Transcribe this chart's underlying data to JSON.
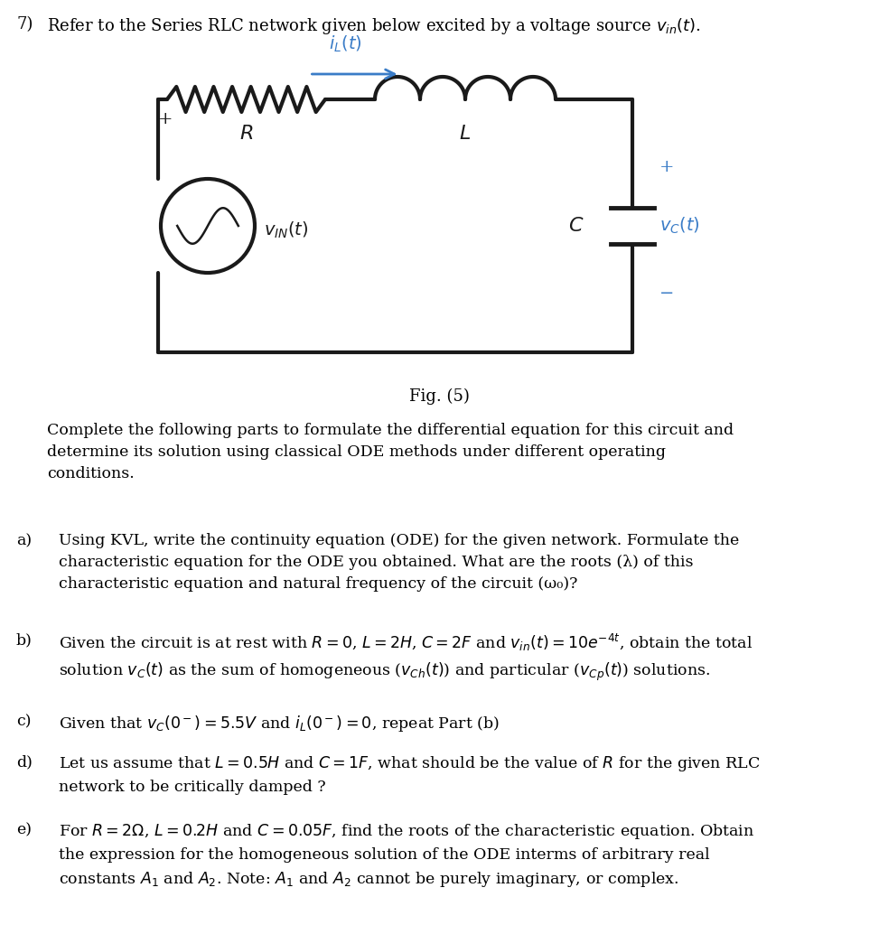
{
  "wire_color": "#1a1a1a",
  "blue_color": "#3a7cc7",
  "title": "7)  Refer to the Series RLC network given below excited by a voltage source $v_{in}(t)$.",
  "fig_label": "Fig. (5)",
  "intro": "Complete the following parts to formulate the differential equation for this circuit and\ndetermine its solution using classical ODE methods under different operating\nconditions.",
  "items": [
    {
      "label": "a)",
      "text": "Using KVL, write the continuity equation (ODE) for the given network. Formulate the\ncharacteristic equation for the ODE you obtained. What are the roots (λ) of this\ncharacteristic equation and natural frequency of the circuit (ω₀)?"
    },
    {
      "label": "b)",
      "text": "Given the circuit is at rest with R = 0, L = 2H, C = 2F and $v_{in}(t) = 10e^{-4t}$, obtain the total\nsolution $v_C(t)$ as the sum of homogeneous ($v_{Ch}(t)$) and particular ($v_{Cp}(t)$) solutions."
    },
    {
      "label": "c)",
      "text": "Given that $v_C(0^-) = 5.5V$ and $i_L(0^-) = 0$, repeat Part (b)"
    },
    {
      "label": "d)",
      "text": "Let us assume that L = 0.5H and C = 1F, what should be the value of R for the given RLC\nnetwork to be critically damped ?"
    },
    {
      "label": "e)",
      "text": "For R = 2Ω, L = 0.2H and C = 0.05F, find the roots of the characteristic equation. Obtain\nthe expression for the homogeneous solution of the ODE interms of arbitrary real\nconstants $A_1$ and $A_2$. Note: $A_1$ and $A_2$ cannot be purely imaginary, or complex."
    }
  ]
}
